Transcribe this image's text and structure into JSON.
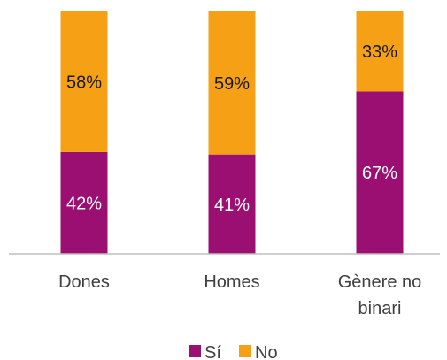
{
  "chart_data": {
    "type": "bar",
    "stacked": true,
    "normalized": true,
    "categories": [
      [
        "Dones"
      ],
      [
        "Homes"
      ],
      [
        "Gènere no",
        "binari"
      ]
    ],
    "series": [
      {
        "name": "Sí",
        "color": "#9b0e72",
        "text_color": "#ffffff",
        "values": [
          42,
          41,
          67
        ],
        "labels": [
          "42%",
          "41%",
          "67%"
        ]
      },
      {
        "name": "No",
        "color": "#f6a016",
        "text_color": "#1a1a1a",
        "values": [
          58,
          59,
          33
        ],
        "labels": [
          "58%",
          "59%",
          "33%"
        ]
      }
    ],
    "ylim": [
      0,
      100
    ],
    "grid": false,
    "legend_position": "bottom",
    "title": "",
    "xlabel": "",
    "ylabel": ""
  }
}
